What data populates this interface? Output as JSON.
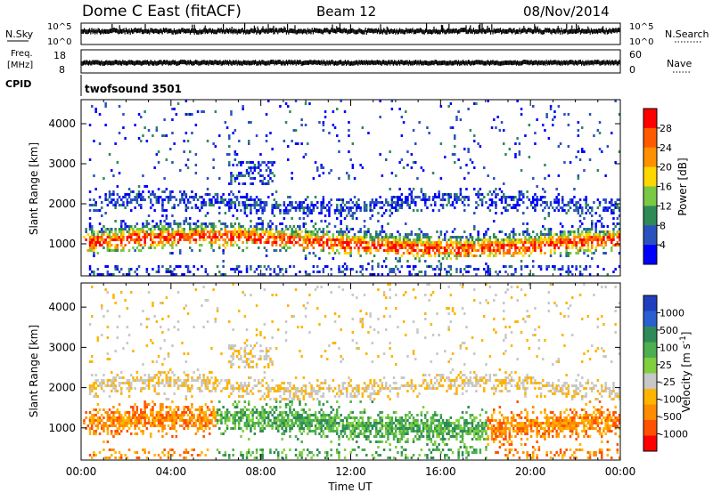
{
  "header": {
    "title": "Dome C East (fitACF)",
    "beam": "Beam 12",
    "date": "08/Nov/2014"
  },
  "strips": {
    "nsky": {
      "label": "N.Sky",
      "ticks": [
        "10^5",
        "10^0"
      ]
    },
    "nsearch": {
      "label": "N.Search",
      "ticks": [
        "10^5",
        "10^0"
      ]
    },
    "freq": {
      "label_line1": "Freq.",
      "label_line2": "[MHz]",
      "ticks": [
        "18",
        "8"
      ]
    },
    "nave": {
      "label": "Nave",
      "ticks": [
        "60",
        "0"
      ]
    },
    "cpid": {
      "label": "CPID",
      "value": "twofsound 3501"
    }
  },
  "chart_data": [
    {
      "type": "heatmap",
      "name": "power",
      "ylabel": "Slant Range [km]",
      "xlabel": "",
      "ylim": [
        200,
        4600
      ],
      "xlim_hours": [
        0,
        24
      ],
      "yticks": [
        "1000",
        "2000",
        "3000",
        "4000"
      ],
      "colorbar": {
        "label": "Power [dB]",
        "ticks": [
          "28",
          "24",
          "20",
          "16",
          "12",
          "8",
          "4"
        ],
        "colors": [
          "#ff0000",
          "#ff5a00",
          "#ff9100",
          "#ffd700",
          "#7ac943",
          "#2e8b57",
          "#2a52be",
          "#0000ff"
        ]
      }
    },
    {
      "type": "heatmap",
      "name": "velocity",
      "ylabel": "Slant Range [km]",
      "xlabel": "Time UT",
      "ylim": [
        200,
        4600
      ],
      "xlim_hours": [
        0,
        24
      ],
      "yticks": [
        "1000",
        "2000",
        "3000",
        "4000"
      ],
      "xticks": [
        "00:00",
        "04:00",
        "08:00",
        "12:00",
        "16:00",
        "20:00",
        "00:00"
      ],
      "colorbar": {
        "label": "Velocity [m s",
        "label_sup": "-1",
        "label_close": "]",
        "ticks": [
          "1000",
          "500",
          "100",
          "25",
          "-25",
          "-100",
          "-500",
          "-1000"
        ],
        "colors": [
          "#1f3fbf",
          "#2a5fd0",
          "#2e8b57",
          "#4caf50",
          "#7fcf3f",
          "#c8c8c8",
          "#ffb400",
          "#ff8c00",
          "#ff5000",
          "#ff0000"
        ]
      }
    }
  ]
}
